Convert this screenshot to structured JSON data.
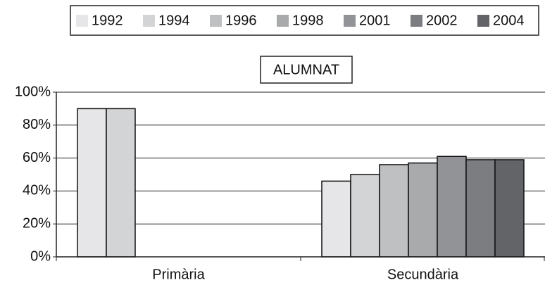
{
  "chart_data": {
    "type": "bar",
    "title": "ALUMNAT",
    "categories": [
      "Primària",
      "Secundària"
    ],
    "series": [
      {
        "name": "1992",
        "color": "#e6e6e8",
        "values": [
          90,
          46
        ]
      },
      {
        "name": "1994",
        "color": "#d3d4d6",
        "values": [
          90,
          50
        ]
      },
      {
        "name": "1996",
        "color": "#bfc0c2",
        "values": [
          null,
          56
        ]
      },
      {
        "name": "1998",
        "color": "#a9aaac",
        "values": [
          null,
          57
        ]
      },
      {
        "name": "2001",
        "color": "#929396",
        "values": [
          null,
          61
        ]
      },
      {
        "name": "2002",
        "color": "#7c7d80",
        "values": [
          null,
          59
        ]
      },
      {
        "name": "2004",
        "color": "#636467",
        "values": [
          null,
          59
        ]
      }
    ],
    "ylim": [
      0,
      100
    ],
    "yticks": [
      {
        "value": 0,
        "label": "0%"
      },
      {
        "value": 20,
        "label": "20%"
      },
      {
        "value": 40,
        "label": "40%"
      },
      {
        "value": 60,
        "label": "60%"
      },
      {
        "value": 80,
        "label": "80%"
      },
      {
        "value": 100,
        "label": "100%"
      }
    ],
    "grid": true,
    "legend": "top"
  }
}
